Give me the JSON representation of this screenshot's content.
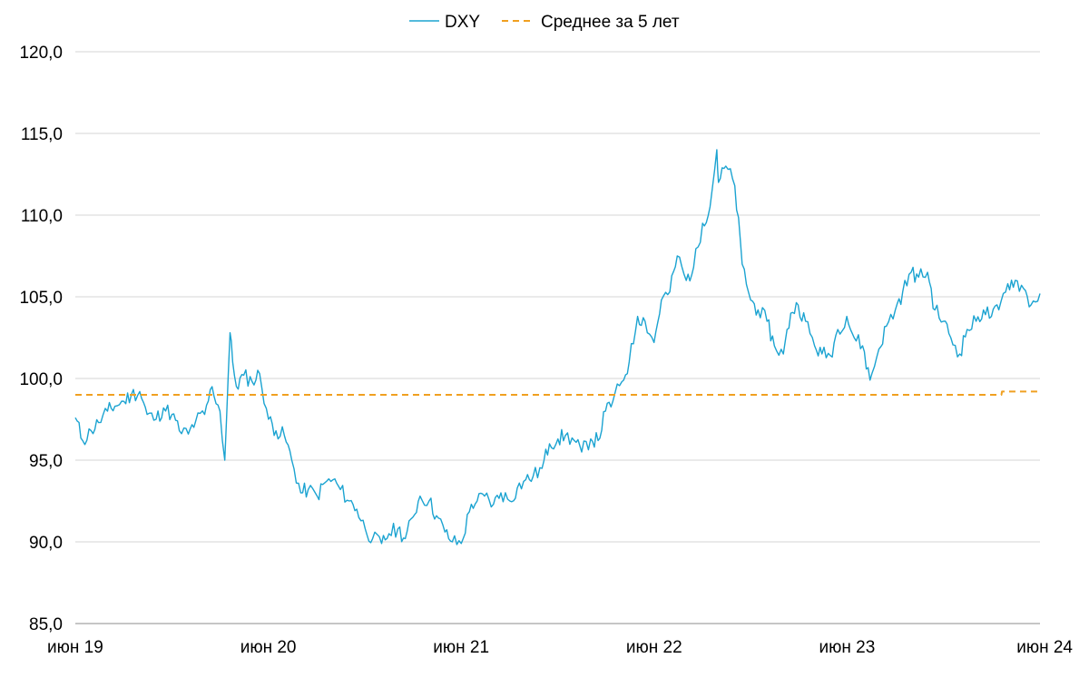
{
  "chart_data": {
    "type": "line",
    "title": "",
    "xlabel": "",
    "ylabel": "",
    "x_ticks": [
      "июн 19",
      "июн 20",
      "июн 21",
      "июн 22",
      "июн 23",
      "июн 24"
    ],
    "xlim": [
      "2019-06",
      "2024-06"
    ],
    "y_ticks": [
      "85,0",
      "90,0",
      "95,0",
      "100,0",
      "105,0",
      "110,0",
      "115,0",
      "120,0"
    ],
    "ylim": [
      85,
      120
    ],
    "grid": "horizontal",
    "legend_position": "top-center",
    "series": [
      {
        "name": "DXY",
        "color": "#1BA3D1",
        "style": "solid",
        "points": [
          [
            "2019-06",
            97.6
          ],
          [
            "2019-06-15",
            96.2
          ],
          [
            "2019-07",
            96.8
          ],
          [
            "2019-07-15",
            97.3
          ],
          [
            "2019-08",
            98.0
          ],
          [
            "2019-08-15",
            98.3
          ],
          [
            "2019-09",
            98.6
          ],
          [
            "2019-09-15",
            99.0
          ],
          [
            "2019-10",
            99.2
          ],
          [
            "2019-10-15",
            97.8
          ],
          [
            "2019-11",
            97.5
          ],
          [
            "2019-11-15",
            98.2
          ],
          [
            "2019-12",
            97.8
          ],
          [
            "2019-12-15",
            96.8
          ],
          [
            "2020-01",
            96.6
          ],
          [
            "2020-01-15",
            97.4
          ],
          [
            "2020-02",
            97.8
          ],
          [
            "2020-02-15",
            99.5
          ],
          [
            "2020-03",
            98.0
          ],
          [
            "2020-03-10",
            95.0
          ],
          [
            "2020-03-20",
            102.8
          ],
          [
            "2020-03-25",
            101.0
          ],
          [
            "2020-04",
            99.5
          ],
          [
            "2020-04-15",
            100.2
          ],
          [
            "2020-05",
            99.8
          ],
          [
            "2020-05-15",
            100.3
          ],
          [
            "2020-06",
            97.5
          ],
          [
            "2020-06-15",
            96.8
          ],
          [
            "2020-07",
            96.5
          ],
          [
            "2020-07-15",
            95.0
          ],
          [
            "2020-08",
            93.0
          ],
          [
            "2020-08-15",
            93.2
          ],
          [
            "2020-09",
            92.8
          ],
          [
            "2020-09-15",
            93.6
          ],
          [
            "2020-10",
            93.8
          ],
          [
            "2020-10-15",
            93.2
          ],
          [
            "2020-11",
            92.5
          ],
          [
            "2020-11-15",
            92.0
          ],
          [
            "2020-12",
            90.8
          ],
          [
            "2020-12-15",
            90.2
          ],
          [
            "2021-01",
            89.9
          ],
          [
            "2021-01-15",
            90.5
          ],
          [
            "2021-02",
            90.8
          ],
          [
            "2021-02-15",
            90.2
          ],
          [
            "2021-03",
            91.5
          ],
          [
            "2021-03-15",
            92.8
          ],
          [
            "2021-04",
            92.5
          ],
          [
            "2021-04-15",
            91.6
          ],
          [
            "2021-05",
            90.6
          ],
          [
            "2021-05-15",
            90.0
          ],
          [
            "2021-06",
            89.9
          ],
          [
            "2021-06-20",
            92.3
          ],
          [
            "2021-07",
            92.5
          ],
          [
            "2021-07-15",
            92.8
          ],
          [
            "2021-08",
            92.3
          ],
          [
            "2021-08-15",
            93.0
          ],
          [
            "2021-09",
            92.5
          ],
          [
            "2021-09-15",
            93.3
          ],
          [
            "2021-10",
            93.8
          ],
          [
            "2021-10-15",
            94.0
          ],
          [
            "2021-11",
            94.5
          ],
          [
            "2021-11-15",
            96.0
          ],
          [
            "2021-12",
            96.3
          ],
          [
            "2021-12-15",
            96.5
          ],
          [
            "2022-01",
            96.2
          ],
          [
            "2022-01-15",
            95.5
          ],
          [
            "2022-02",
            96.3
          ],
          [
            "2022-02-15",
            96.2
          ],
          [
            "2022-03",
            98.0
          ],
          [
            "2022-03-15",
            98.6
          ],
          [
            "2022-04",
            99.8
          ],
          [
            "2022-04-15",
            101.0
          ],
          [
            "2022-05",
            103.8
          ],
          [
            "2022-05-15",
            103.5
          ],
          [
            "2022-06",
            102.2
          ],
          [
            "2022-06-15",
            104.8
          ],
          [
            "2022-07",
            105.3
          ],
          [
            "2022-07-15",
            107.5
          ],
          [
            "2022-08",
            106.0
          ],
          [
            "2022-08-15",
            106.8
          ],
          [
            "2022-09",
            109.5
          ],
          [
            "2022-09-15",
            110.5
          ],
          [
            "2022-09-28",
            114.0
          ],
          [
            "2022-10",
            112.0
          ],
          [
            "2022-10-15",
            113.0
          ],
          [
            "2022-11",
            111.8
          ],
          [
            "2022-11-15",
            107.0
          ],
          [
            "2022-12",
            104.8
          ],
          [
            "2022-12-15",
            104.2
          ],
          [
            "2023-01",
            103.5
          ],
          [
            "2023-01-15",
            102.0
          ],
          [
            "2023-02",
            101.5
          ],
          [
            "2023-02-15",
            104.0
          ],
          [
            "2023-03",
            104.5
          ],
          [
            "2023-03-15",
            103.5
          ],
          [
            "2023-04",
            102.0
          ],
          [
            "2023-04-15",
            101.5
          ],
          [
            "2023-05",
            101.4
          ],
          [
            "2023-05-15",
            103.0
          ],
          [
            "2023-06",
            103.8
          ],
          [
            "2023-06-15",
            102.5
          ],
          [
            "2023-07",
            102.0
          ],
          [
            "2023-07-15",
            99.9
          ],
          [
            "2023-08",
            101.8
          ],
          [
            "2023-08-15",
            103.2
          ],
          [
            "2023-09",
            104.2
          ],
          [
            "2023-09-15",
            105.3
          ],
          [
            "2023-10",
            106.5
          ],
          [
            "2023-10-15",
            106.2
          ],
          [
            "2023-11",
            106.5
          ],
          [
            "2023-11-15",
            104.2
          ],
          [
            "2023-12",
            103.5
          ],
          [
            "2023-12-15",
            102.5
          ],
          [
            "2024-01",
            101.5
          ],
          [
            "2024-01-15",
            103.0
          ],
          [
            "2024-02",
            103.5
          ],
          [
            "2024-02-15",
            104.2
          ],
          [
            "2024-03",
            103.8
          ],
          [
            "2024-03-15",
            104.2
          ],
          [
            "2024-04",
            105.8
          ],
          [
            "2024-04-15",
            106.0
          ],
          [
            "2024-05",
            105.5
          ],
          [
            "2024-05-15",
            104.5
          ],
          [
            "2024-06",
            105.2
          ]
        ]
      },
      {
        "name": "Среднее за 5 лет",
        "color": "#F0A020",
        "style": "dashed",
        "points": [
          [
            "2019-06",
            99.0
          ],
          [
            "2024-03-20",
            99.0
          ],
          [
            "2024-03-21",
            99.2
          ],
          [
            "2024-06",
            99.2
          ]
        ]
      }
    ]
  }
}
